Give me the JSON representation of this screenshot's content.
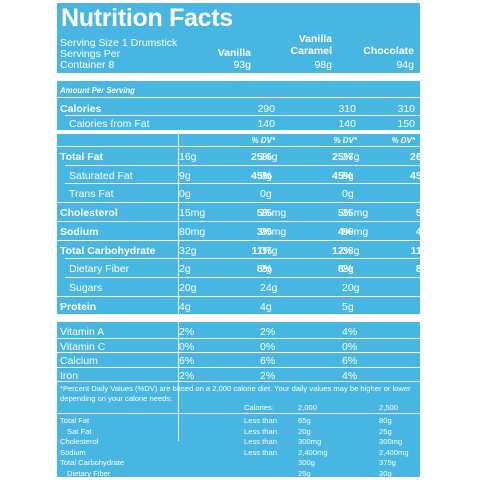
{
  "title": "Nutrition Facts",
  "serving": {
    "size_line": "Serving Size 1 Drumstick",
    "per_line1": "Servings Per",
    "per_line2": "Container  8"
  },
  "flavors": [
    {
      "name_line1": "",
      "name_line2": "Vanilla",
      "weight": "93g"
    },
    {
      "name_line1": "Vanilla",
      "name_line2": "Caramel",
      "weight": "98g"
    },
    {
      "name_line1": "",
      "name_line2": "Chocolate",
      "weight": "94g"
    }
  ],
  "amount_per_serving": "Amount Per Serving",
  "calories": {
    "label": "Calories",
    "values": [
      "290",
      "310",
      "310"
    ]
  },
  "calories_fat": {
    "label": "Calories from Fat",
    "values": [
      "140",
      "140",
      "150"
    ]
  },
  "dv_header": "% DV*",
  "nutrients": [
    {
      "label": "Total Fat",
      "bold": true,
      "indent": false,
      "cols": [
        [
          "16g",
          "25%"
        ],
        [
          "16g",
          "25%"
        ],
        [
          "17g",
          "26%"
        ]
      ]
    },
    {
      "label": "Saturated Fat",
      "bold": false,
      "indent": true,
      "cols": [
        [
          "9g",
          "45%"
        ],
        [
          "9g",
          "45%"
        ],
        [
          "9g",
          "45%"
        ]
      ]
    },
    {
      "label": "Trans Fat",
      "bold": false,
      "indent": true,
      "cols": [
        [
          "0g",
          ""
        ],
        [
          "0g",
          ""
        ],
        [
          "0g",
          ""
        ]
      ]
    },
    {
      "label": "Cholesterol",
      "bold": true,
      "indent": false,
      "cols": [
        [
          "15mg",
          "5%"
        ],
        [
          "15mg",
          "5%"
        ],
        [
          "15mg",
          "5%"
        ]
      ]
    },
    {
      "label": "Sodium",
      "bold": true,
      "indent": false,
      "cols": [
        [
          "80mg",
          "3%"
        ],
        [
          "90mg",
          "4%"
        ],
        [
          "90mg",
          "4%"
        ]
      ]
    },
    {
      "label": "Total Carbohydrate",
      "bold": true,
      "indent": false,
      "cols": [
        [
          "32g",
          "11%"
        ],
        [
          "37g",
          "12%"
        ],
        [
          "33g",
          "11%"
        ]
      ]
    },
    {
      "label": "Dietary Fiber",
      "bold": false,
      "indent": true,
      "cols": [
        [
          "2g",
          "8%"
        ],
        [
          "2g",
          "8%"
        ],
        [
          "2g",
          "8%"
        ]
      ]
    },
    {
      "label": "Sugars",
      "bold": false,
      "indent": true,
      "cols": [
        [
          "20g",
          ""
        ],
        [
          "24g",
          ""
        ],
        [
          "20g",
          ""
        ]
      ]
    },
    {
      "label": "Protein",
      "bold": true,
      "indent": false,
      "cols": [
        [
          "4g",
          ""
        ],
        [
          "4g",
          ""
        ],
        [
          "5g",
          ""
        ]
      ]
    }
  ],
  "vitamins": [
    {
      "label": "Vitamin A",
      "values": [
        "2%",
        "2%",
        "4%"
      ]
    },
    {
      "label": "Vitamin C",
      "values": [
        "0%",
        "0%",
        "0%"
      ]
    },
    {
      "label": "Calcium",
      "values": [
        "6%",
        "6%",
        "6%"
      ]
    },
    {
      "label": "Iron",
      "values": [
        "2%",
        "2%",
        "4%"
      ]
    }
  ],
  "footnote": "*Percent Daily Values (%DV) are based on a 2,000 calorie diet. Your daily values may be higher or lower depending on your calorie needs:",
  "daily_table": {
    "header": {
      "label": "Calories:",
      "c1": "2,000",
      "c2": "2,500"
    },
    "rows": [
      {
        "name": "Total Fat",
        "indent": false,
        "cond": "Less than",
        "c1": "65g",
        "c2": "80g"
      },
      {
        "name": "Sat Fat",
        "indent": true,
        "cond": "Less than",
        "c1": "20g",
        "c2": "25g"
      },
      {
        "name": "Cholesterol",
        "indent": false,
        "cond": "Less than",
        "c1": "300mg",
        "c2": "300mg"
      },
      {
        "name": "Sodium",
        "indent": false,
        "cond": "Less than",
        "c1": "2,400mg",
        "c2": "2,400mg"
      },
      {
        "name": "Total Carbohydrate",
        "indent": false,
        "cond": "",
        "c1": "300g",
        "c2": "375g"
      },
      {
        "name": "Dietary Fiber",
        "indent": true,
        "cond": "",
        "c1": "25g",
        "c2": "30g"
      }
    ]
  },
  "colors": {
    "panel": "#47b6e2",
    "text": "#ffffff"
  }
}
